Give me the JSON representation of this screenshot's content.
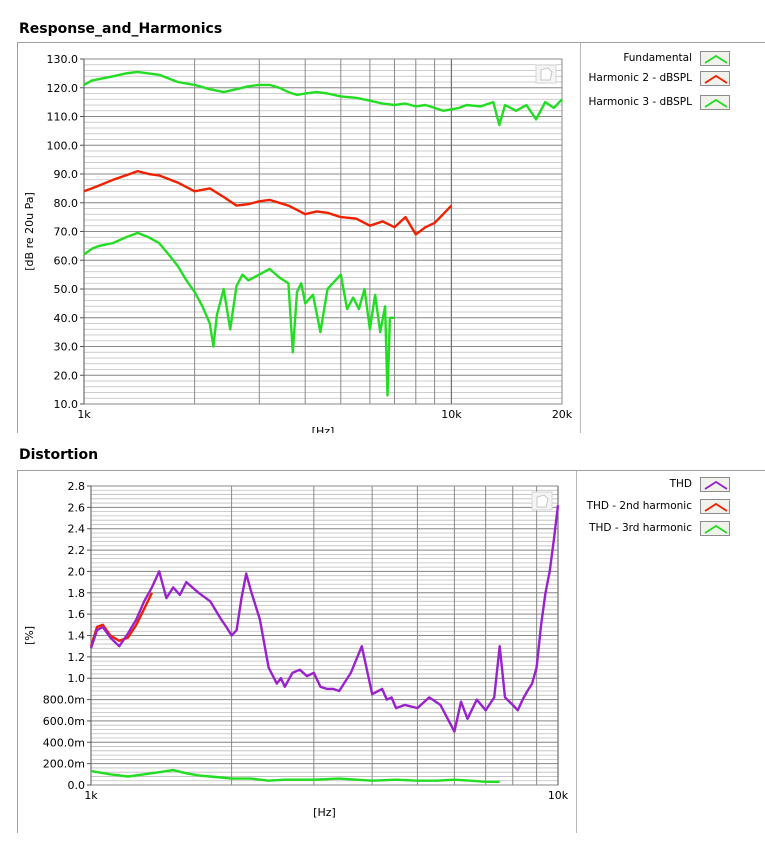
{
  "chart_data": [
    {
      "type": "line",
      "title": "Response_and_Harmonics",
      "xlabel": "[Hz]",
      "ylabel": "[dB re 20u Pa]",
      "xscale": "log",
      "xlim": [
        1000,
        20000
      ],
      "ylim": [
        10,
        130
      ],
      "yticks": [
        "10.0",
        "20.0",
        "30.0",
        "40.0",
        "50.0",
        "60.0",
        "70.0",
        "80.0",
        "90.0",
        "100.0",
        "110.0",
        "120.0",
        "130.0"
      ],
      "ytick_values": [
        10,
        20,
        30,
        40,
        50,
        60,
        70,
        80,
        90,
        100,
        110,
        120,
        130
      ],
      "xticks": [
        "1k",
        "10k",
        "20k"
      ],
      "xtick_values": [
        1000,
        10000,
        20000
      ],
      "grid": true,
      "legend_position": "right",
      "series": [
        {
          "name": "Fundamental",
          "color": "#22dd22",
          "x": [
            1000,
            1050,
            1100,
            1200,
            1300,
            1400,
            1500,
            1600,
            1800,
            2000,
            2200,
            2400,
            2600,
            2800,
            3000,
            3200,
            3400,
            3600,
            3800,
            4000,
            4300,
            4600,
            5000,
            5500,
            6000,
            6500,
            7000,
            7500,
            8000,
            8500,
            9000,
            9500,
            10000,
            10500,
            11000,
            12000,
            13000,
            13500,
            14000,
            15000,
            16000,
            17000,
            18000,
            19000,
            20000
          ],
          "y": [
            121,
            122.5,
            123,
            124,
            125,
            125.5,
            125,
            124.5,
            122,
            121,
            119.5,
            118.5,
            119.5,
            120.5,
            121,
            121,
            120,
            118.5,
            117.5,
            118,
            118.5,
            118,
            117,
            116.5,
            115.5,
            114.5,
            114,
            114.5,
            113.5,
            114,
            113,
            112,
            112.5,
            113,
            114,
            113.5,
            115,
            107,
            114,
            112,
            114,
            109,
            115,
            113,
            116
          ]
        },
        {
          "name": "Harmonic 2 - dBSPL",
          "color": "#ee2200",
          "x": [
            1000,
            1050,
            1100,
            1200,
            1300,
            1400,
            1500,
            1600,
            1800,
            2000,
            2200,
            2400,
            2600,
            2800,
            3000,
            3200,
            3400,
            3600,
            3800,
            4000,
            4300,
            4600,
            5000,
            5500,
            6000,
            6500,
            7000,
            7500,
            8000,
            8500,
            9000,
            9500,
            10000
          ],
          "y": [
            84,
            85,
            86,
            88,
            89.5,
            91,
            90,
            89.5,
            87,
            84,
            85,
            82,
            79,
            79.5,
            80.5,
            81,
            80,
            79,
            77.5,
            76,
            77,
            76.5,
            75,
            74.5,
            72,
            73.5,
            71.5,
            75,
            69,
            71.5,
            73,
            76,
            79
          ]
        },
        {
          "name": "Harmonic 3 - dBSPL",
          "color": "#22dd22",
          "x": [
            1000,
            1050,
            1100,
            1200,
            1300,
            1400,
            1500,
            1600,
            1700,
            1800,
            1900,
            2000,
            2100,
            2200,
            2250,
            2300,
            2400,
            2500,
            2600,
            2700,
            2800,
            3000,
            3200,
            3400,
            3600,
            3700,
            3800,
            3900,
            4000,
            4200,
            4400,
            4600,
            5000,
            5200,
            5400,
            5600,
            5800,
            6000,
            6200,
            6400,
            6600,
            6700,
            6800,
            7000
          ],
          "y": [
            62,
            64,
            65,
            66,
            68,
            69.5,
            68,
            66,
            62,
            58,
            53,
            49,
            44,
            38,
            30,
            41,
            50,
            36,
            51,
            55,
            53,
            55,
            57,
            54,
            52,
            28,
            49,
            52,
            45,
            48,
            35,
            50,
            55,
            43,
            47,
            43,
            50,
            36,
            48,
            35,
            44,
            13,
            40,
            40
          ]
        }
      ]
    },
    {
      "type": "line",
      "title": "Distortion",
      "xlabel": "[Hz]",
      "ylabel": "[%]",
      "xscale": "log",
      "xlim": [
        1000,
        10000
      ],
      "ylim": [
        0,
        2.8
      ],
      "yticks": [
        "0.0",
        "200.0m",
        "400.0m",
        "600.0m",
        "800.0m",
        "1.0",
        "1.2",
        "1.4",
        "1.6",
        "1.8",
        "2.0",
        "2.2",
        "2.4",
        "2.6",
        "2.8"
      ],
      "ytick_values": [
        0,
        0.2,
        0.4,
        0.6,
        0.8,
        1.0,
        1.2,
        1.4,
        1.6,
        1.8,
        2.0,
        2.2,
        2.4,
        2.6,
        2.8
      ],
      "xticks": [
        "1k",
        "10k"
      ],
      "xtick_values": [
        1000,
        10000
      ],
      "grid": true,
      "legend_position": "right",
      "series": [
        {
          "name": "THD",
          "color": "#9922cc",
          "x": [
            1000,
            1030,
            1060,
            1100,
            1150,
            1200,
            1250,
            1300,
            1350,
            1400,
            1450,
            1500,
            1550,
            1600,
            1700,
            1800,
            1900,
            1950,
            2000,
            2050,
            2100,
            2150,
            2200,
            2300,
            2400,
            2500,
            2550,
            2600,
            2700,
            2800,
            2900,
            3000,
            3100,
            3200,
            3300,
            3400,
            3600,
            3800,
            4000,
            4200,
            4300,
            4400,
            4500,
            4700,
            5000,
            5300,
            5600,
            6000,
            6200,
            6400,
            6700,
            7000,
            7300,
            7500,
            7700,
            8000,
            8200,
            8400,
            8600,
            8800,
            9000,
            9200,
            9400,
            9600,
            9800,
            10000
          ],
          "y": [
            1.28,
            1.45,
            1.48,
            1.38,
            1.3,
            1.42,
            1.55,
            1.72,
            1.85,
            2.0,
            1.75,
            1.85,
            1.78,
            1.9,
            1.8,
            1.72,
            1.55,
            1.48,
            1.4,
            1.45,
            1.75,
            1.98,
            1.82,
            1.55,
            1.1,
            0.95,
            1.0,
            0.92,
            1.05,
            1.08,
            1.02,
            1.05,
            0.92,
            0.9,
            0.9,
            0.88,
            1.05,
            1.3,
            0.85,
            0.9,
            0.8,
            0.82,
            0.72,
            0.75,
            0.72,
            0.82,
            0.75,
            0.5,
            0.78,
            0.62,
            0.8,
            0.7,
            0.82,
            1.3,
            0.82,
            0.75,
            0.7,
            0.8,
            0.88,
            0.95,
            1.1,
            1.5,
            1.8,
            2.0,
            2.3,
            2.62
          ]
        },
        {
          "name": "THD - 2nd harmonic",
          "color": "#ee2200",
          "x": [
            1000,
            1030,
            1060,
            1100,
            1150,
            1200,
            1250,
            1300,
            1350
          ],
          "y": [
            1.3,
            1.48,
            1.5,
            1.4,
            1.35,
            1.38,
            1.5,
            1.65,
            1.8
          ]
        },
        {
          "name": "THD - 3rd harmonic",
          "color": "#22dd22",
          "x": [
            1000,
            1100,
            1200,
            1300,
            1400,
            1500,
            1600,
            1700,
            1800,
            1900,
            2000,
            2200,
            2400,
            2600,
            3000,
            3400,
            4000,
            4500,
            5000,
            5500,
            6000,
            6500,
            7000,
            7500
          ],
          "y": [
            0.13,
            0.1,
            0.08,
            0.1,
            0.12,
            0.14,
            0.11,
            0.09,
            0.08,
            0.07,
            0.06,
            0.06,
            0.04,
            0.05,
            0.05,
            0.06,
            0.04,
            0.05,
            0.04,
            0.04,
            0.05,
            0.04,
            0.03,
            0.03
          ]
        }
      ]
    }
  ]
}
